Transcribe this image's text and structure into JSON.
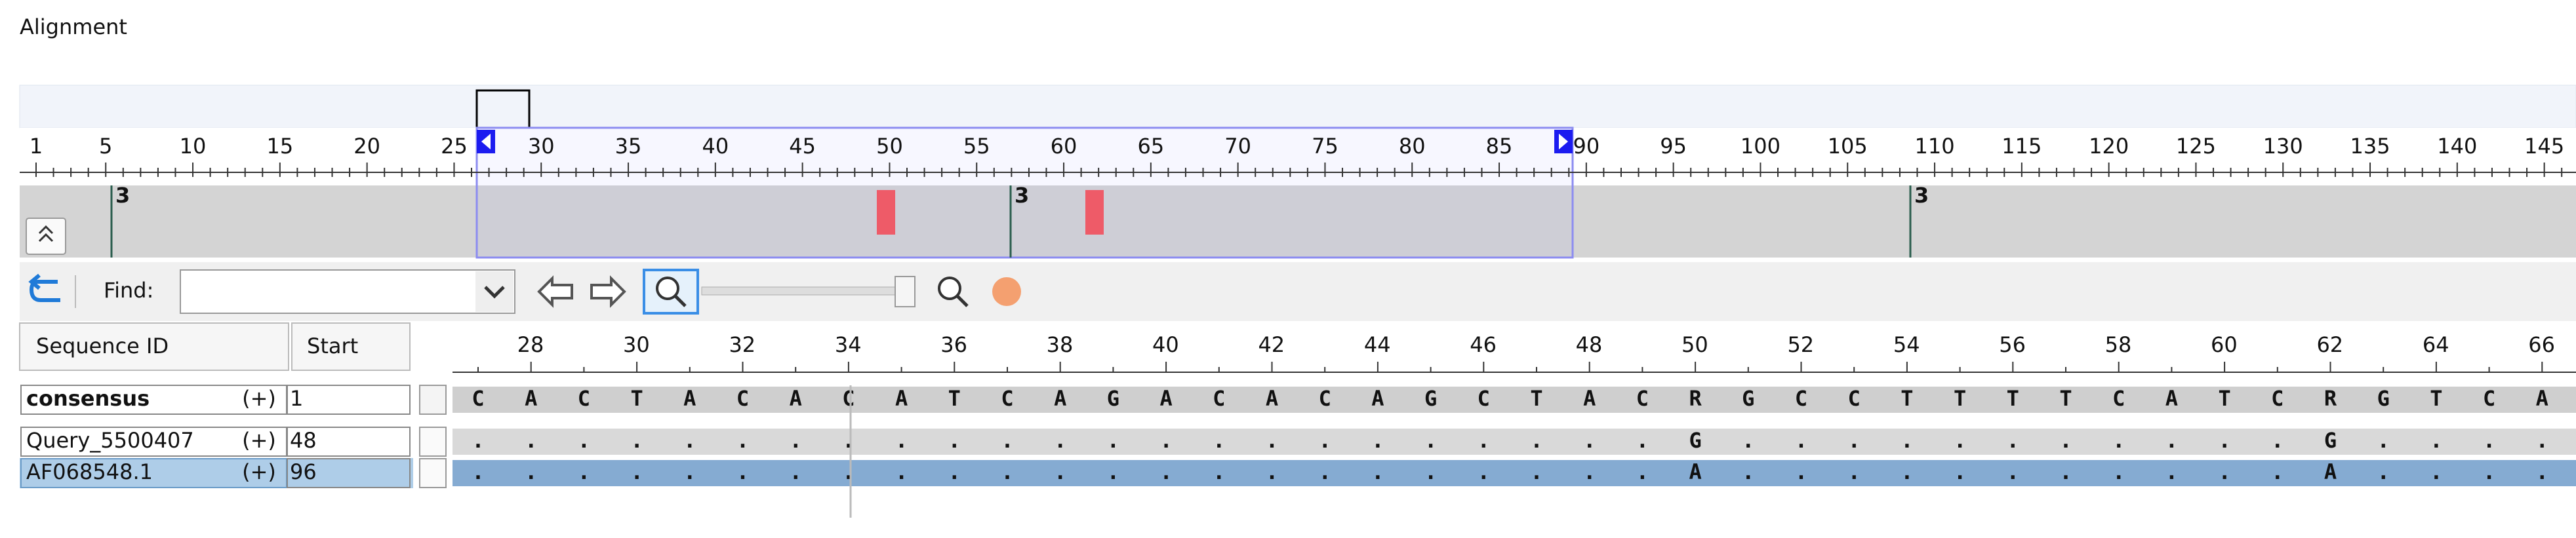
{
  "title": "Alignment",
  "overview": {
    "ruler": [
      1,
      5,
      10,
      15,
      20,
      25,
      30,
      35,
      40,
      45,
      50,
      55,
      60,
      65,
      70,
      75,
      80,
      85,
      90,
      95,
      100,
      105,
      110,
      115,
      120,
      125,
      130,
      135,
      140,
      145
    ],
    "markers": [
      "3",
      "3",
      "3"
    ]
  },
  "toolbar": {
    "find_label": "Find:"
  },
  "alignment": {
    "columns": [
      "Sequence ID",
      "Start"
    ],
    "ruler": [
      28,
      30,
      32,
      34,
      36,
      38,
      40,
      42,
      44,
      46,
      48,
      50,
      52,
      54,
      56,
      58,
      60,
      62,
      64,
      66
    ],
    "rows": [
      {
        "id": "consensus",
        "strand": "(+)",
        "start": 1,
        "sequence": [
          "C",
          "A",
          "C",
          "T",
          "A",
          "C",
          "A",
          "C",
          "A",
          "T",
          "C",
          "A",
          "G",
          "A",
          "C",
          "A",
          "C",
          "A",
          "G",
          "C",
          "T",
          "A",
          "C",
          "R",
          "G",
          "C",
          "C",
          "T",
          "T",
          "T",
          "T",
          "C",
          "A",
          "T",
          "C",
          "R",
          "G",
          "T",
          "C",
          "A"
        ]
      },
      {
        "id": "Query_5500407",
        "strand": "(+)",
        "start": 48,
        "sequence": [
          ".",
          ".",
          ".",
          ".",
          ".",
          ".",
          ".",
          ".",
          ".",
          ".",
          ".",
          ".",
          ".",
          ".",
          ".",
          ".",
          ".",
          ".",
          ".",
          ".",
          ".",
          ".",
          ".",
          "G",
          ".",
          ".",
          ".",
          ".",
          ".",
          ".",
          ".",
          ".",
          ".",
          ".",
          ".",
          "G",
          ".",
          ".",
          ".",
          "."
        ]
      },
      {
        "id": "AF068548.1",
        "strand": "(+)",
        "start": 96,
        "sequence": [
          ".",
          ".",
          ".",
          ".",
          ".",
          ".",
          ".",
          ".",
          ".",
          ".",
          ".",
          ".",
          ".",
          ".",
          ".",
          ".",
          ".",
          ".",
          ".",
          ".",
          ".",
          ".",
          ".",
          "A",
          ".",
          ".",
          ".",
          ".",
          ".",
          ".",
          ".",
          ".",
          ".",
          ".",
          ".",
          "A",
          ".",
          ".",
          ".",
          "."
        ]
      }
    ]
  }
}
